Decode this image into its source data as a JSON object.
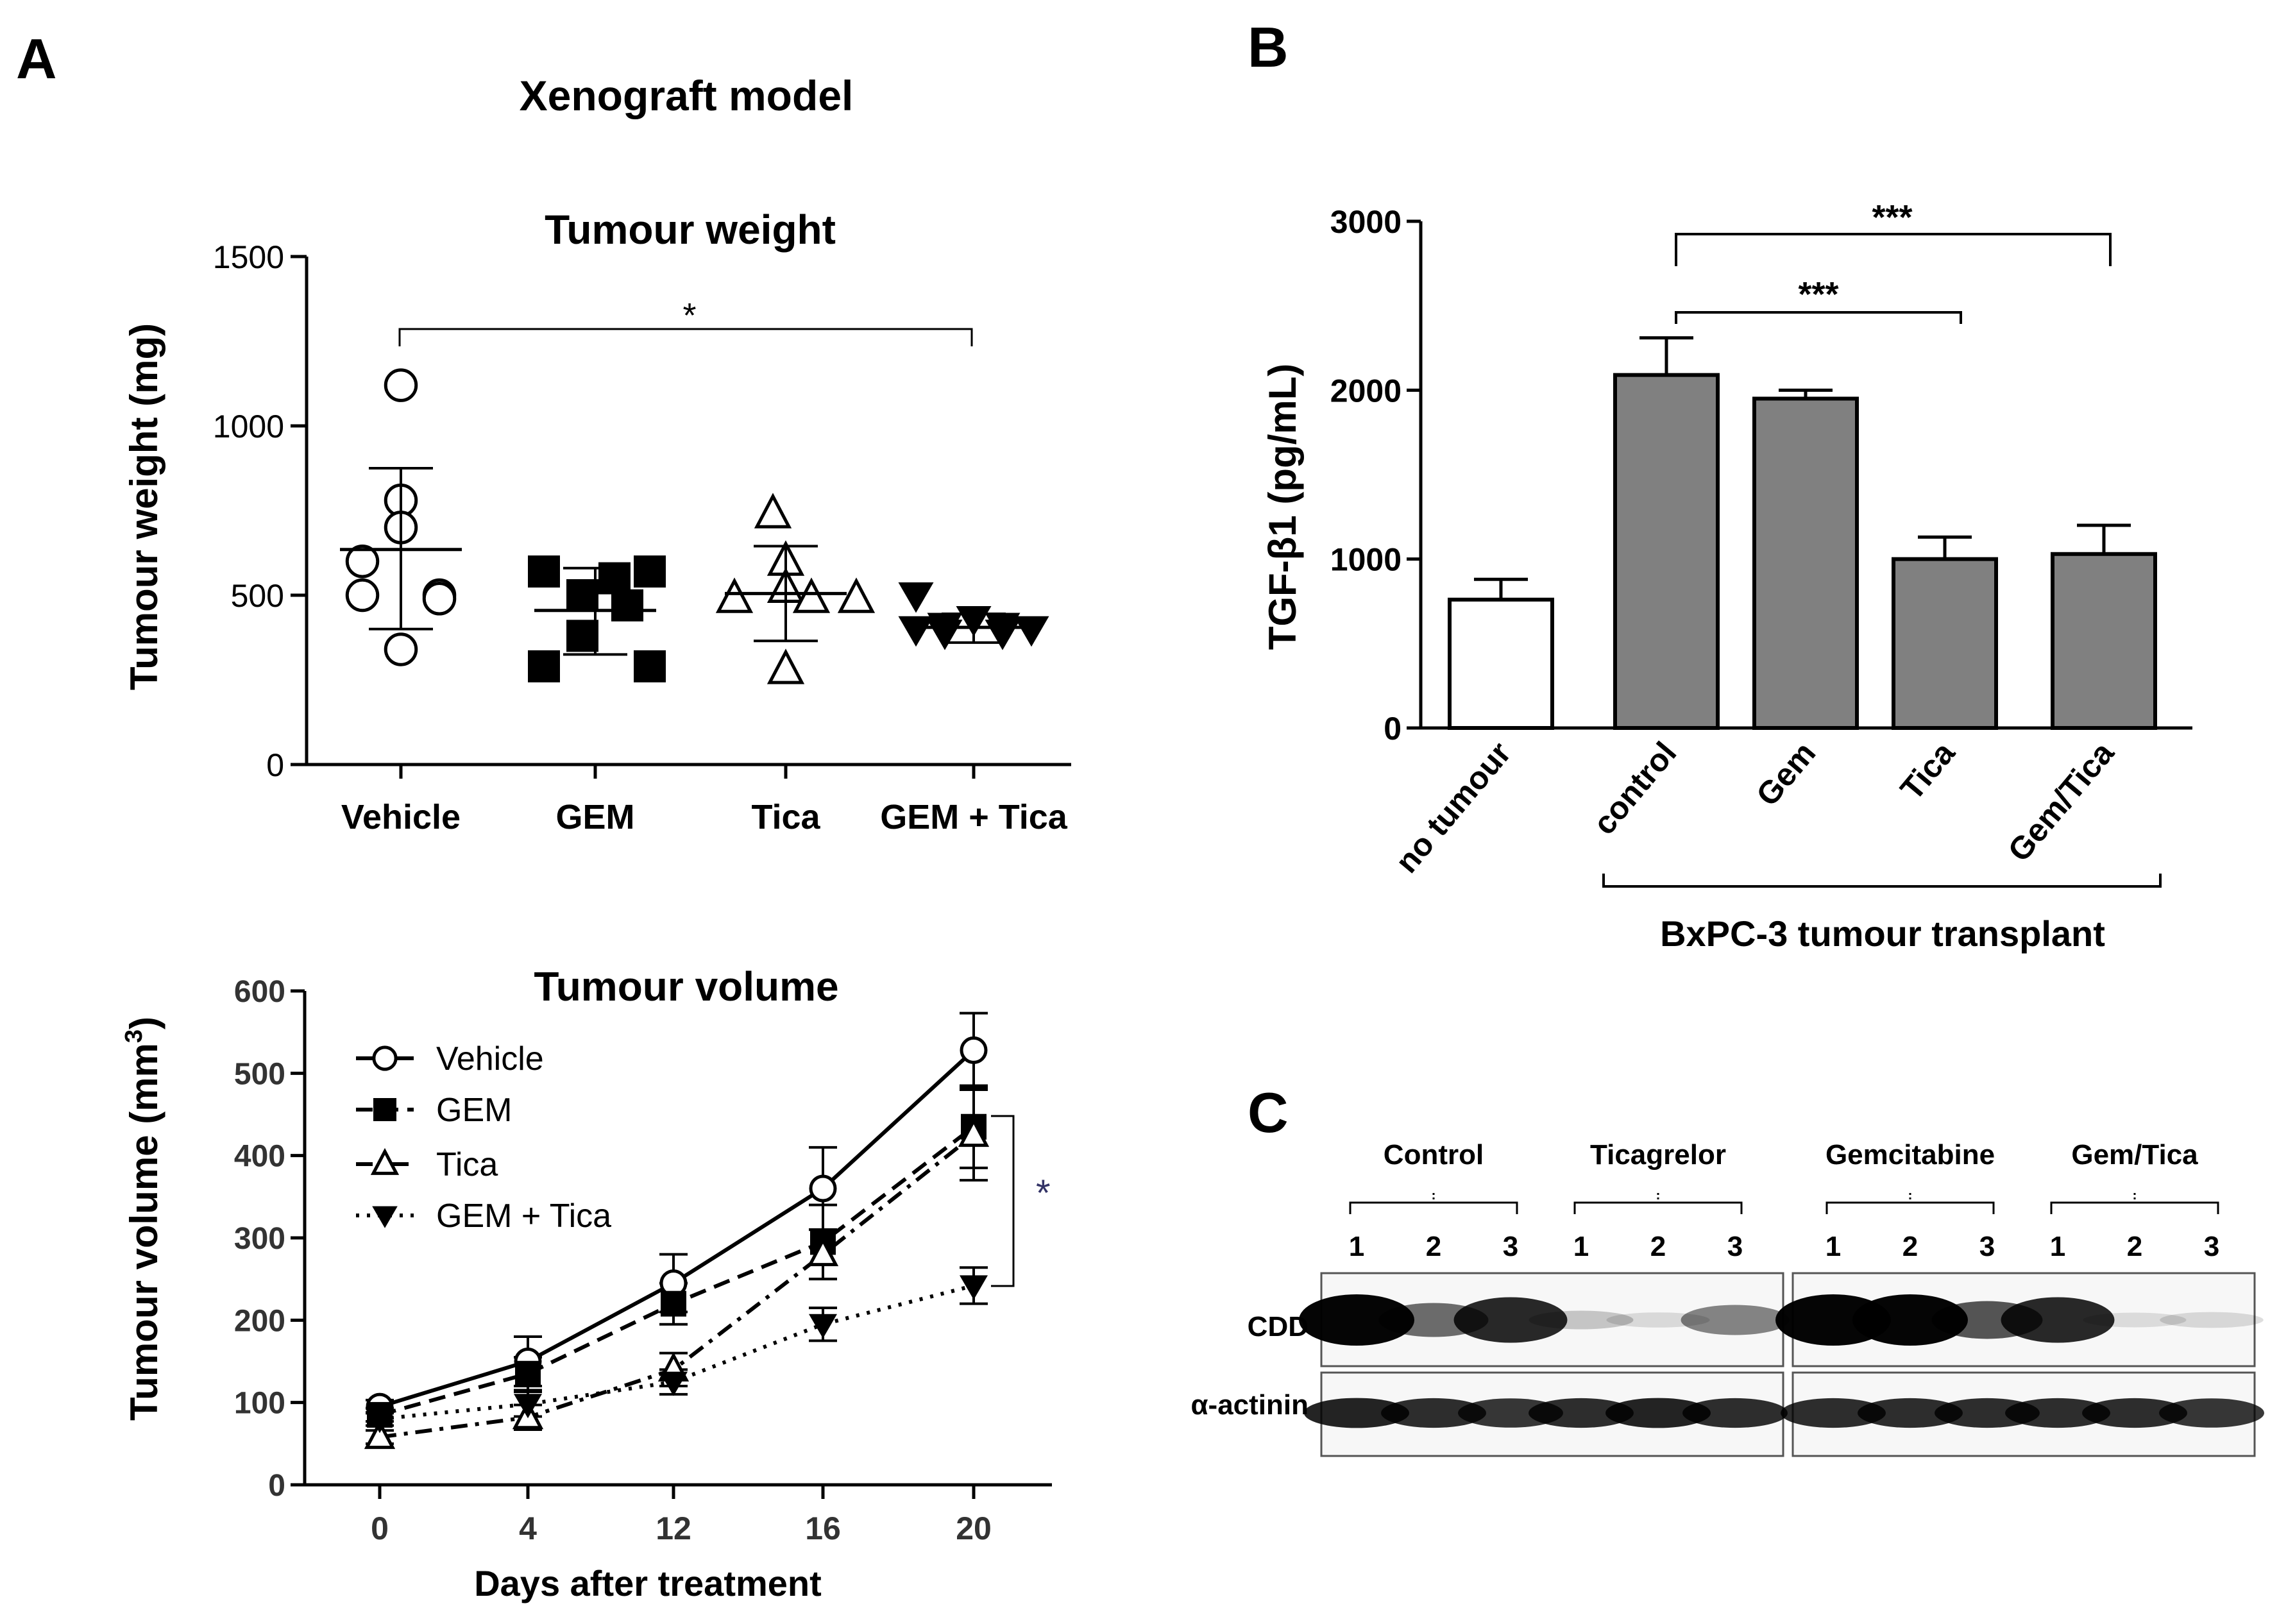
{
  "panels": {
    "A": {
      "label": "A",
      "heading": "Xenograft model",
      "weight": {
        "title": "Tumour weight",
        "ylabel": "Tumour weight (mg)",
        "significance": "*"
      },
      "volume": {
        "title": "Tumour volume",
        "ylabel_main": "Tumour volume (mm",
        "ylabel_sup": "3",
        "ylabel_close": ")",
        "xlabel": "Days after treatment",
        "significance": "*"
      }
    },
    "B": {
      "label": "B",
      "bracket_label": "BxPC-3 tumour transplant",
      "significance_1": "***",
      "significance_2": "***"
    },
    "C": {
      "label": "C",
      "groups": [
        "Control",
        "Ticagrelor",
        "Gemcitabine",
        "Gem/Tica"
      ],
      "lanes": [
        "1",
        "2",
        "3"
      ],
      "rows": [
        "CDD",
        "α-actinin"
      ]
    }
  },
  "chart_data": [
    {
      "id": "tumour-weight",
      "type": "scatter",
      "title": "Tumour weight",
      "xlabel": "",
      "ylabel": "Tumour weight (mg)",
      "categories": [
        "Vehicle",
        "GEM",
        "Tica",
        "GEM + Tica"
      ],
      "ylim": [
        0,
        1500
      ],
      "yticks": [
        0,
        500,
        1000,
        1500
      ],
      "markers": [
        "circle-open",
        "square-filled",
        "triangle-open",
        "triangle-down-filled"
      ],
      "points": [
        [
          1120,
          780,
          700,
          600,
          500,
          500,
          490,
          340
        ],
        [
          570,
          570,
          550,
          500,
          470,
          380,
          290,
          290
        ],
        [
          740,
          600,
          520,
          490,
          490,
          490,
          280
        ],
        [
          500,
          430,
          410,
          410,
          400,
          400,
          390,
          390
        ]
      ],
      "mean": [
        635,
        455,
        505,
        405
      ],
      "sd_low": [
        400,
        325,
        365,
        360
      ],
      "sd_high": [
        875,
        580,
        645,
        445
      ],
      "significance": {
        "from": "Vehicle",
        "to": "GEM + Tica",
        "label": "*"
      }
    },
    {
      "id": "tumour-volume",
      "type": "line",
      "title": "Tumour volume",
      "xlabel": "Days after treatment",
      "ylabel": "Tumour volume (mm3)",
      "x": [
        "0",
        "4",
        "12",
        "16",
        "20"
      ],
      "ylim": [
        0,
        600
      ],
      "yticks": [
        0,
        100,
        200,
        300,
        400,
        500,
        600
      ],
      "legend": "top-left",
      "series": [
        {
          "name": "Vehicle",
          "dash": "solid",
          "marker": "circle-open",
          "values": [
            95,
            150,
            245,
            360,
            528
          ],
          "err": [
            8,
            30,
            35,
            50,
            45
          ]
        },
        {
          "name": "GEM",
          "dash": "dashed",
          "marker": "square-filled",
          "values": [
            85,
            135,
            220,
            295,
            435
          ],
          "err": [
            8,
            20,
            25,
            45,
            50
          ]
        },
        {
          "name": "Tica",
          "dash": "dash-dot",
          "marker": "triangle-open",
          "values": [
            58,
            82,
            140,
            280,
            425
          ],
          "err": [
            8,
            15,
            20,
            30,
            55
          ]
        },
        {
          "name": "GEM + Tica",
          "dash": "dotted",
          "marker": "triangle-down-filled",
          "values": [
            80,
            98,
            125,
            195,
            242
          ],
          "err": [
            8,
            15,
            15,
            20,
            22
          ]
        }
      ],
      "significance": {
        "between": [
          "GEM",
          "GEM + Tica"
        ],
        "at": "20",
        "label": "*"
      }
    },
    {
      "id": "tgf-beta",
      "type": "bar",
      "title": "",
      "xlabel": "",
      "ylabel": "TGF-β1 (pg/mL)",
      "categories": [
        "no tumour",
        "control",
        "Gem",
        "Tica",
        "Gem/Tica"
      ],
      "fills": [
        "#ffffff",
        "#808080",
        "#808080",
        "#808080",
        "#808080"
      ],
      "values": [
        760,
        2090,
        1950,
        1000,
        1030
      ],
      "err": [
        120,
        220,
        50,
        130,
        170
      ],
      "ylim": [
        0,
        3000
      ],
      "yticks": [
        0,
        1000,
        2000,
        3000
      ],
      "significance": [
        {
          "from": "control",
          "to": "Tica",
          "label": "***"
        },
        {
          "from": "control",
          "to": "Gem/Tica",
          "label": "***"
        }
      ]
    }
  ],
  "blot": {
    "CDD": [
      1.0,
      0.55,
      0.85,
      0.15,
      0.06,
      0.45,
      1.0,
      1.0,
      0.65,
      0.85,
      0.05,
      0.08
    ],
    "alpha_actinin": [
      0.9,
      0.85,
      0.8,
      0.85,
      0.9,
      0.85,
      0.85,
      0.85,
      0.85,
      0.85,
      0.85,
      0.8
    ]
  }
}
